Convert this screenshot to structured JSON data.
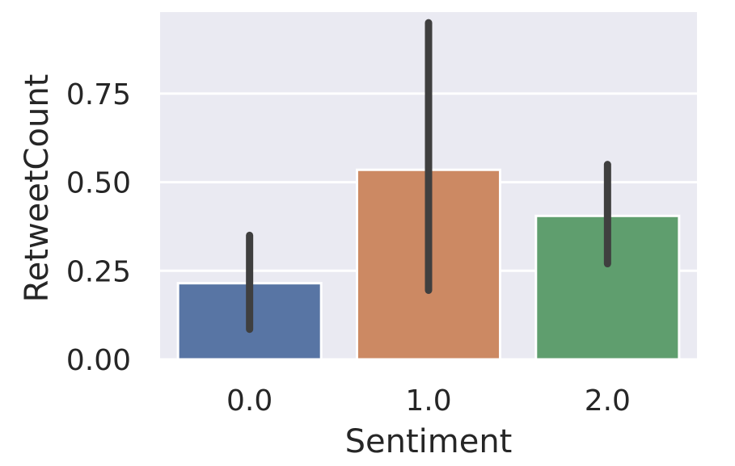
{
  "chart_data": {
    "type": "bar",
    "xlabel": "Sentiment",
    "ylabel": "RetweetCount",
    "categories": [
      "0.0",
      "1.0",
      "2.0"
    ],
    "values": [
      0.215,
      0.535,
      0.405
    ],
    "error_bars": [
      {
        "low": 0.085,
        "high": 0.35
      },
      {
        "low": 0.195,
        "high": 0.95
      },
      {
        "low": 0.27,
        "high": 0.55
      }
    ],
    "colors": [
      "#5875a4",
      "#cc8963",
      "#5f9e6e"
    ],
    "yticks": [
      {
        "value": 0.0,
        "label": "0.00"
      },
      {
        "value": 0.25,
        "label": "0.25"
      },
      {
        "value": 0.5,
        "label": "0.50"
      },
      {
        "value": 0.75,
        "label": "0.75"
      }
    ],
    "ylim": [
      0,
      0.98
    ],
    "grid": true,
    "background": "#eaeaf2",
    "errorbar_color": "#3f3f3f"
  }
}
